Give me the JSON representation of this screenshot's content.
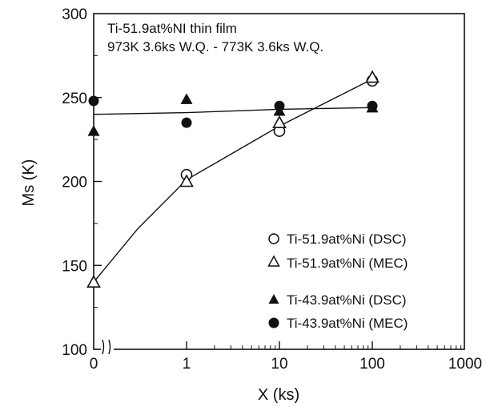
{
  "chart_data": {
    "type": "scatter",
    "title": "",
    "annotation_lines": [
      "Ti-51.9at%NI thin film",
      "973K 3.6ks W.Q. - 773K 3.6ks W.Q."
    ],
    "xlabel": "X (ks)",
    "ylabel": "Ms (K)",
    "x_scale": "log (with broken segment at 0)",
    "x_ticks": [
      "0",
      "1",
      "10",
      "100",
      "1000"
    ],
    "y_ticks": [
      "100",
      "150",
      "200",
      "250",
      "300"
    ],
    "ylim": [
      100,
      300
    ],
    "grid": false,
    "legend_position": "bottom-right",
    "series": [
      {
        "name": "Ti-51.9at%Ni (DSC)",
        "marker": "open-circle",
        "points": [
          {
            "x": 1,
            "y": 204
          },
          {
            "x": 10,
            "y": 230
          },
          {
            "x": 100,
            "y": 260
          }
        ]
      },
      {
        "name": "Ti-51.9at%Ni (MEC)",
        "marker": "open-triangle",
        "points": [
          {
            "x": 0,
            "y": 140
          },
          {
            "x": 1,
            "y": 200
          },
          {
            "x": 10,
            "y": 235
          },
          {
            "x": 100,
            "y": 262
          }
        ]
      },
      {
        "name": "Ti-43.9at%Ni (DSC)",
        "marker": "filled-triangle",
        "points": [
          {
            "x": 0,
            "y": 230
          },
          {
            "x": 1,
            "y": 249
          },
          {
            "x": 10,
            "y": 242
          },
          {
            "x": 100,
            "y": 244
          }
        ]
      },
      {
        "name": "Ti-43.9at%Ni (MEC)",
        "marker": "filled-circle",
        "points": [
          {
            "x": 0,
            "y": 248
          },
          {
            "x": 1,
            "y": 235
          },
          {
            "x": 10,
            "y": 245
          },
          {
            "x": 100,
            "y": 245
          }
        ]
      }
    ],
    "trend_lines": [
      {
        "points": [
          {
            "x": 0,
            "y": 140
          },
          {
            "x": 0.3,
            "y": 172
          },
          {
            "x": 1,
            "y": 201
          },
          {
            "x": 10,
            "y": 233
          },
          {
            "x": 100,
            "y": 261
          }
        ]
      },
      {
        "points": [
          {
            "x": 0,
            "y": 240
          },
          {
            "x": 1,
            "y": 241
          },
          {
            "x": 10,
            "y": 243
          },
          {
            "x": 100,
            "y": 244
          }
        ]
      }
    ]
  }
}
